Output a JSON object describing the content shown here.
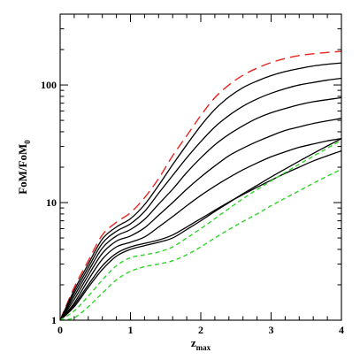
{
  "chart_data": {
    "type": "line",
    "title": "",
    "xlabel": {
      "main": "z",
      "sub": "max"
    },
    "ylabel": {
      "main": "FoM/FoM",
      "sub": "0"
    },
    "xlim": [
      0,
      4
    ],
    "ylim": [
      1,
      400
    ],
    "yscale": "log",
    "grid": false,
    "x_ticks": [
      0,
      1,
      2,
      3,
      4
    ],
    "x_tick_labels": [
      "0",
      "1",
      "2",
      "3",
      "4"
    ],
    "y_ticks": [
      1,
      10,
      100
    ],
    "y_tick_labels": [
      "1",
      "10",
      "100"
    ],
    "colors": {
      "red": "#e8231f",
      "black": "#000000",
      "green": "#31d42a"
    },
    "series": [
      {
        "color": "red",
        "style": "long-dash",
        "x": [
          0,
          0.2,
          0.4,
          0.6,
          0.8,
          1.0,
          1.2,
          1.4,
          1.6,
          1.8,
          2.0,
          2.2,
          2.4,
          2.6,
          2.8,
          3.0,
          3.2,
          3.4,
          3.6,
          3.8,
          4.0
        ],
        "y": [
          1,
          1.9,
          3.2,
          5.3,
          6.8,
          8.2,
          11,
          16,
          25,
          37,
          55,
          78,
          100,
          121,
          139,
          155,
          168,
          178,
          184,
          189,
          193
        ]
      },
      {
        "color": "black",
        "style": "solid",
        "x": [
          0,
          0.2,
          0.4,
          0.6,
          0.8,
          1.0,
          1.2,
          1.4,
          1.6,
          1.8,
          2.0,
          2.2,
          2.4,
          2.6,
          2.8,
          3.0,
          3.2,
          3.4,
          3.6,
          3.8,
          4.0
        ],
        "y": [
          1,
          1.8,
          3.0,
          4.9,
          6.2,
          7.3,
          9.6,
          14,
          21,
          31,
          45,
          62,
          79,
          95,
          108,
          120,
          130,
          138,
          145,
          150,
          154
        ]
      },
      {
        "color": "black",
        "style": "solid",
        "x": [
          0,
          0.2,
          0.4,
          0.6,
          0.8,
          1.0,
          1.2,
          1.4,
          1.6,
          1.8,
          2.0,
          2.2,
          2.4,
          2.6,
          2.8,
          3.0,
          3.2,
          3.4,
          3.6,
          3.8,
          4.0
        ],
        "y": [
          1,
          1.7,
          2.8,
          4.5,
          5.7,
          6.6,
          8.4,
          12,
          17,
          24,
          33,
          44,
          55,
          66,
          76,
          85,
          93,
          100,
          105,
          110,
          114
        ]
      },
      {
        "color": "black",
        "style": "solid",
        "x": [
          0,
          0.2,
          0.4,
          0.6,
          0.8,
          1.0,
          1.2,
          1.4,
          1.6,
          1.8,
          2.0,
          2.2,
          2.4,
          2.6,
          2.8,
          3.0,
          3.2,
          3.4,
          3.6,
          3.8,
          4.0
        ],
        "y": [
          1,
          1.6,
          2.6,
          4.1,
          5.2,
          5.9,
          7.2,
          9.7,
          13,
          18,
          24,
          31,
          38,
          45,
          52,
          58,
          63,
          68,
          72,
          75,
          78
        ]
      },
      {
        "color": "black",
        "style": "solid",
        "x": [
          0,
          0.2,
          0.4,
          0.6,
          0.8,
          1.0,
          1.2,
          1.4,
          1.6,
          1.8,
          2.0,
          2.2,
          2.4,
          2.6,
          2.8,
          3.0,
          3.2,
          3.4,
          3.6,
          3.8,
          4.0
        ],
        "y": [
          1,
          1.5,
          2.4,
          3.7,
          4.7,
          5.2,
          6.1,
          7.8,
          10,
          13,
          16.5,
          20.5,
          25,
          29,
          33,
          37,
          41,
          44,
          47,
          49.5,
          52
        ]
      },
      {
        "color": "black",
        "style": "solid",
        "x": [
          0,
          0.2,
          0.4,
          0.6,
          0.8,
          1.0,
          1.2,
          1.4,
          1.6,
          1.8,
          2.0,
          2.2,
          2.4,
          2.6,
          2.8,
          3.0,
          3.2,
          3.4,
          3.6,
          3.8,
          4.0
        ],
        "y": [
          1,
          1.4,
          2.2,
          3.3,
          4.2,
          4.6,
          5.1,
          6.2,
          7.6,
          9.4,
          11.5,
          13.8,
          16.3,
          19,
          21.7,
          24.5,
          27,
          29.5,
          31.5,
          33.5,
          35
        ]
      },
      {
        "color": "black",
        "style": "solid",
        "x": [
          0,
          0.2,
          0.4,
          0.6,
          0.8,
          1.0,
          1.2,
          1.4,
          1.6,
          1.8,
          2.0,
          2.2,
          2.4,
          2.6,
          2.8,
          3.0,
          3.2,
          3.4,
          3.6,
          3.8,
          4.0
        ],
        "y": [
          1,
          1.35,
          2.0,
          2.9,
          3.7,
          4.2,
          4.5,
          4.8,
          5.3,
          6.2,
          7.3,
          8.6,
          10.1,
          11.7,
          13.5,
          15.5,
          17.7,
          20,
          22.6,
          25,
          27.5
        ]
      },
      {
        "color": "black",
        "style": "solid",
        "x": [
          0,
          0.2,
          0.4,
          0.6,
          0.8,
          1.0,
          1.2,
          1.4,
          1.6,
          1.8,
          2.0,
          2.2,
          2.4,
          2.6,
          2.8,
          3.0,
          3.2,
          3.4,
          3.6,
          3.8,
          4.0
        ],
        "y": [
          1,
          1.3,
          1.9,
          2.7,
          3.5,
          4.0,
          4.3,
          4.6,
          5.0,
          5.9,
          7.0,
          8.4,
          10,
          11.9,
          14,
          16.5,
          19.3,
          22.5,
          26.2,
          30.3,
          35
        ]
      },
      {
        "color": "green",
        "style": "short-dash",
        "x": [
          0,
          0.2,
          0.4,
          0.6,
          0.8,
          1.0,
          1.2,
          1.4,
          1.6,
          1.8,
          2.0,
          2.2,
          2.4,
          2.6,
          2.8,
          3.0,
          3.2,
          3.4,
          3.6,
          3.8,
          4.0
        ],
        "y": [
          1,
          1.2,
          1.6,
          2.2,
          2.9,
          3.4,
          3.6,
          3.8,
          4.2,
          5.0,
          6.0,
          7.3,
          8.9,
          10.8,
          12.9,
          15.3,
          18,
          21.2,
          24.8,
          29,
          34
        ]
      },
      {
        "color": "green",
        "style": "short-dash",
        "x": [
          0,
          0.2,
          0.4,
          0.6,
          0.8,
          1.0,
          1.2,
          1.4,
          1.6,
          1.8,
          2.0,
          2.2,
          2.4,
          2.6,
          2.8,
          3.0,
          3.2,
          3.4,
          3.6,
          3.8,
          4.0
        ],
        "y": [
          1,
          1.05,
          1.3,
          1.7,
          2.2,
          2.6,
          2.85,
          3.0,
          3.2,
          3.6,
          4.2,
          5.0,
          5.9,
          6.9,
          8.0,
          9.4,
          10.9,
          12.6,
          14.6,
          16.8,
          19.2
        ]
      }
    ]
  }
}
